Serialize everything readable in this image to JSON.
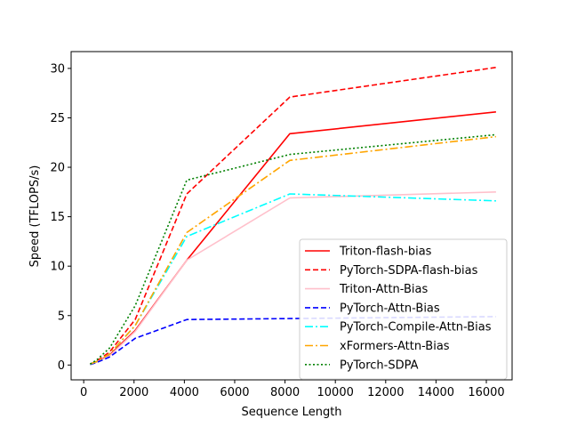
{
  "chart_data": {
    "type": "line",
    "title": "",
    "xlabel": "Sequence Length",
    "ylabel": "Speed (TFLOPS/s)",
    "xlim": [
      -500,
      17024
    ],
    "ylim": [
      -1.5,
      31.7
    ],
    "xticks": [
      0,
      2000,
      4000,
      6000,
      8000,
      10000,
      12000,
      14000,
      16000
    ],
    "yticks": [
      0,
      5,
      10,
      15,
      20,
      25,
      30
    ],
    "grid": false,
    "legend_position": "lower-right",
    "x": [
      256,
      512,
      1024,
      2048,
      4096,
      8192,
      16384
    ],
    "series": [
      {
        "name": "Triton-flash-bias",
        "color": "#ff0000",
        "style": "solid",
        "values": [
          0.1,
          0.3,
          1.0,
          3.5,
          10.6,
          23.4,
          25.6
        ]
      },
      {
        "name": "PyTorch-SDPA-flash-bias",
        "color": "#ff0000",
        "style": "dashed",
        "values": [
          0.1,
          0.4,
          1.3,
          4.6,
          17.3,
          27.1,
          30.1
        ]
      },
      {
        "name": "Triton-Attn-Bias",
        "color": "#ffc0cb",
        "style": "solid",
        "values": [
          0.1,
          0.3,
          0.9,
          3.4,
          10.6,
          16.9,
          17.5
        ]
      },
      {
        "name": "PyTorch-Attn-Bias",
        "color": "#0000ff",
        "style": "dashed",
        "values": [
          0.05,
          0.25,
          0.8,
          2.7,
          4.6,
          4.7,
          4.9
        ]
      },
      {
        "name": "PyTorch-Compile-Attn-Bias",
        "color": "#00ffff",
        "style": "dashdot",
        "values": [
          0.1,
          0.35,
          1.1,
          4.0,
          13.0,
          17.3,
          16.6
        ]
      },
      {
        "name": "xFormers-Attn-Bias",
        "color": "#ffa500",
        "style": "dashdot",
        "values": [
          0.1,
          0.35,
          1.1,
          4.0,
          13.4,
          20.7,
          23.1
        ]
      },
      {
        "name": "PyTorch-SDPA",
        "color": "#008000",
        "style": "dotted",
        "values": [
          0.1,
          0.5,
          1.7,
          6.0,
          18.7,
          21.3,
          23.3
        ]
      }
    ]
  }
}
